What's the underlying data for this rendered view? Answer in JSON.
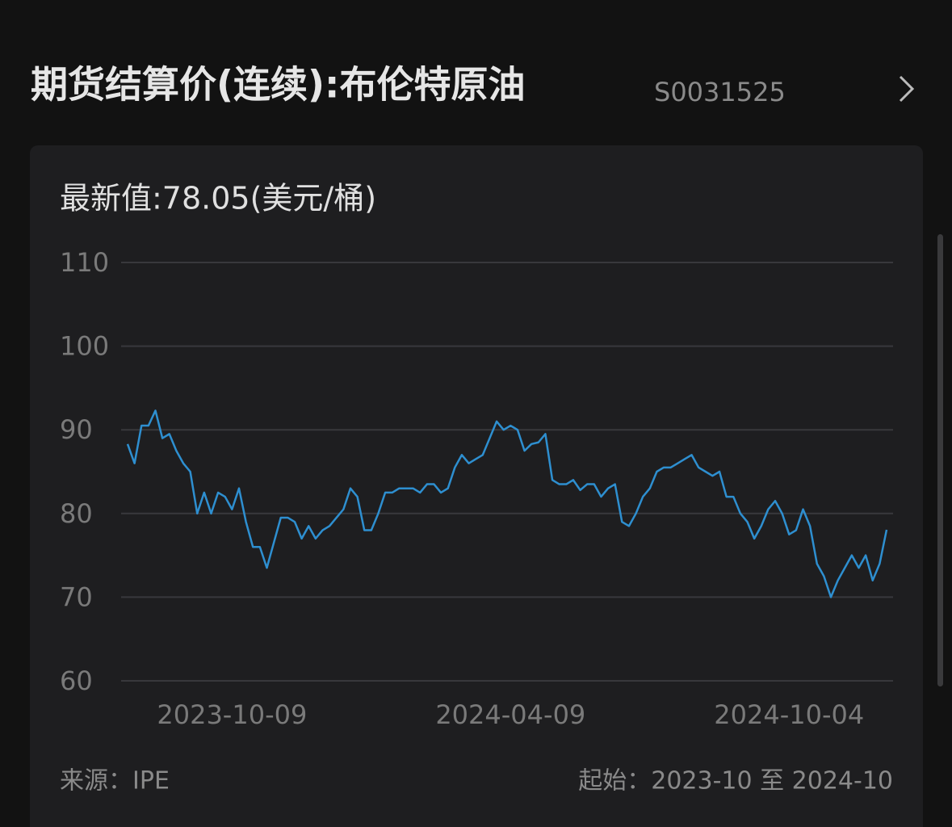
{
  "header": {
    "title": "期货结算价(连续):布伦特原油",
    "code": "S0031525"
  },
  "chart_data": {
    "type": "line",
    "subtitle": "最新值:78.05(美元/桶)",
    "source": "来源：IPE",
    "range": "起始：2023-10 至 2024-10",
    "categories": [
      null,
      null,
      null,
      null,
      null,
      null,
      null,
      null,
      null,
      null,
      null,
      null,
      null,
      null,
      null,
      "2023-10-09",
      null,
      null,
      null,
      null,
      null,
      null,
      null,
      null,
      null,
      null,
      null,
      null,
      null,
      null,
      null,
      null,
      null,
      null,
      null,
      null,
      null,
      null,
      null,
      null,
      null,
      null,
      null,
      null,
      null,
      null,
      null,
      null,
      null,
      null,
      null,
      null,
      null,
      null,
      null,
      "2024-04-09",
      null,
      null,
      null,
      null,
      null,
      null,
      null,
      null,
      null,
      null,
      null,
      null,
      null,
      null,
      null,
      null,
      null,
      null,
      null,
      null,
      null,
      null,
      null,
      null,
      null,
      null,
      null,
      null,
      null,
      null,
      null,
      null,
      null,
      null,
      null,
      null,
      null,
      null,
      null,
      "2024-10-04",
      null,
      null,
      null,
      null,
      null,
      null,
      null,
      null,
      null,
      null,
      null,
      null,
      null,
      null
    ],
    "series": [
      {
        "name": "布伦特原油",
        "color": "#2e8fd0",
        "values": [
          88.3,
          86,
          90.5,
          90.5,
          92.3,
          89,
          89.5,
          87.5,
          86,
          85,
          80,
          82.5,
          80,
          82.5,
          82,
          80.5,
          83,
          79,
          76,
          76,
          73.5,
          76.5,
          79.5,
          79.5,
          79,
          77,
          78.5,
          77,
          78,
          78.5,
          79.5,
          80.5,
          83,
          82,
          78,
          78,
          80,
          82.5,
          82.5,
          83,
          83,
          83,
          82.5,
          83.5,
          83.5,
          82.5,
          83,
          85.5,
          87,
          86,
          86.5,
          87,
          89,
          91,
          90,
          90.5,
          90,
          87.5,
          88.3,
          88.5,
          89.5,
          84,
          83.5,
          83.5,
          84,
          82.8,
          83.5,
          83.5,
          82,
          83,
          83.5,
          79,
          78.5,
          80,
          82,
          83,
          85,
          85.5,
          85.5,
          86,
          86.5,
          87,
          85.5,
          85,
          84.5,
          85,
          82,
          82,
          80,
          79,
          77,
          78.5,
          80.5,
          81.5,
          80,
          77.5,
          78,
          80.5,
          78.5,
          74,
          72.5,
          70,
          72,
          73.5,
          75,
          73.5,
          75,
          72,
          74,
          78.05
        ]
      }
    ],
    "ylim": [
      60,
      110
    ],
    "yticks": [
      60,
      70,
      80,
      90,
      100,
      110
    ],
    "grid": true
  }
}
